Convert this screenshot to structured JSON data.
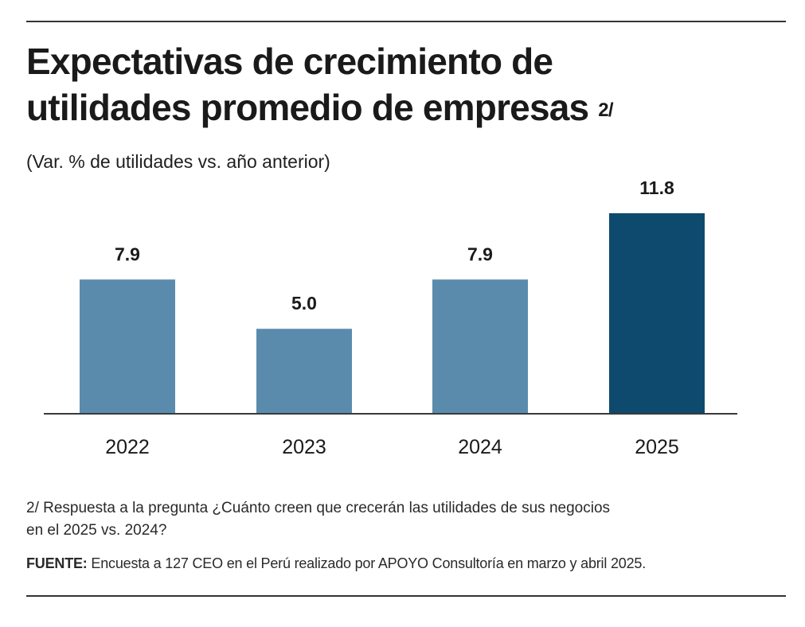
{
  "chart_data": {
    "type": "bar",
    "title_line1": "Expectativas de crecimiento de",
    "title_line2": "utilidades promedio de empresas",
    "title_note": "2/",
    "subtitle": "(Var. % de utilidades vs. año anterior)",
    "categories": [
      "2022",
      "2023",
      "2024",
      "2025"
    ],
    "values": [
      7.9,
      5.0,
      7.9,
      11.8
    ],
    "value_labels": [
      "7.9",
      "5.0",
      "7.9",
      "11.8"
    ],
    "ylim": [
      0,
      11.8
    ],
    "colors": [
      "#5b8bac",
      "#5b8bac",
      "#5b8bac",
      "#0e4a6e"
    ],
    "xlabel": "",
    "ylabel": ""
  },
  "footnote": {
    "line1": "2/ Respuesta a la pregunta ¿Cuánto creen que crecerán las utilidades de sus negocios",
    "line2": "en el 2025 vs. 2024?"
  },
  "source": {
    "label": "FUENTE:",
    "text": " Encuesta a 127 CEO en el Perú realizado por APOYO Consultoría en marzo y abril 2025."
  }
}
